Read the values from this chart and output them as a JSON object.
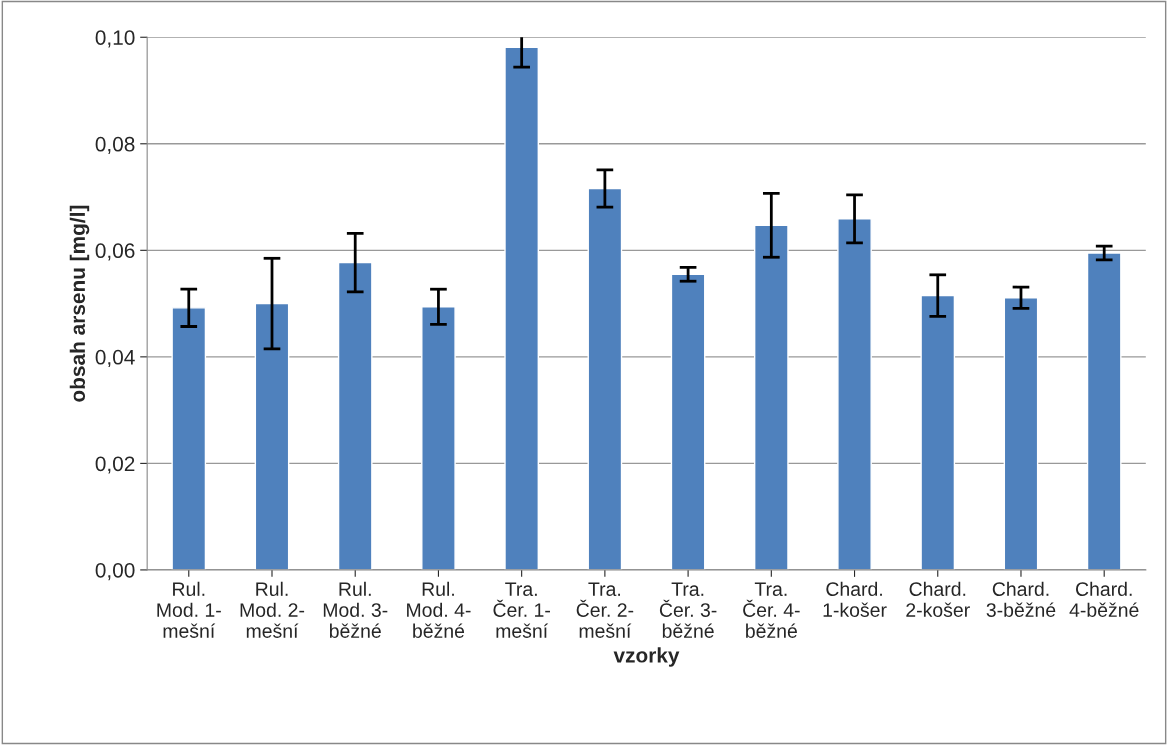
{
  "chart_data": {
    "type": "bar",
    "xlabel": "vzorky",
    "ylabel": "obsah arsenu [mg/l]",
    "categories": [
      "Rul.\nMod. 1-\nmešní",
      "Rul.\nMod. 2-\nmešní",
      "Rul.\nMod. 3-\nběžné",
      "Rul.\nMod. 4-\nběžné",
      "Tra.\nČer. 1-\nmešní",
      "Tra.\nČer. 2-\nmešní",
      "Tra.\nČer. 3-\nběžné",
      "Tra.\nČer. 4-\nběžné",
      "Chard.\n1-košer",
      "Chard.\n2-košer",
      "Chard.\n3-běžné",
      "Chard.\n4-běžné"
    ],
    "values": [
      0.0492,
      0.05,
      0.0577,
      0.0494,
      0.0981,
      0.0716,
      0.0555,
      0.0647,
      0.0659,
      0.0515,
      0.0511,
      0.0595
    ],
    "errors": [
      0.0035,
      0.0085,
      0.0055,
      0.0033,
      0.0037,
      0.0035,
      0.0013,
      0.006,
      0.0045,
      0.0039,
      0.002,
      0.0013
    ],
    "color": "#4f81bd",
    "ylim": [
      0,
      0.1
    ],
    "yticks": [
      {
        "value": 0,
        "label": "0,00"
      },
      {
        "value": 0.02,
        "label": "0,02"
      },
      {
        "value": 0.04,
        "label": "0,04"
      },
      {
        "value": 0.06,
        "label": "0,06"
      },
      {
        "value": 0.08,
        "label": "0,08"
      },
      {
        "value": 0.1,
        "label": "0,10"
      }
    ],
    "grid": "y"
  }
}
